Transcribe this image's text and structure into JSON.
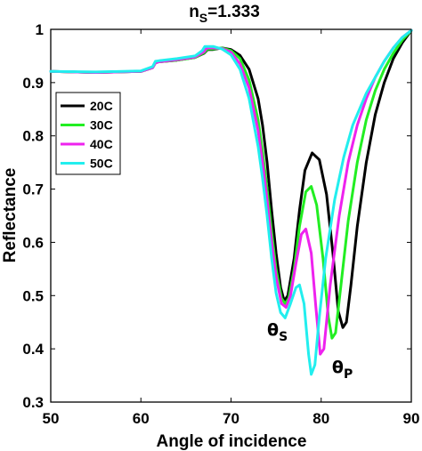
{
  "chart_data": {
    "type": "line",
    "title": "n",
    "title_subscript": "S",
    "title_suffix": "=1.333",
    "xlabel": "Angle of incidence",
    "ylabel": "Reflectance",
    "xlim": [
      50,
      90
    ],
    "ylim": [
      0.3,
      1.0
    ],
    "xticks": [
      50,
      60,
      70,
      80,
      90
    ],
    "yticks": [
      0.3,
      0.4,
      0.5,
      0.6,
      0.7,
      0.8,
      0.9,
      1.0
    ],
    "xtick_labels": [
      "50",
      "60",
      "70",
      "80",
      "90"
    ],
    "ytick_labels": [
      "0.3",
      "0.4",
      "0.5",
      "0.6",
      "0.7",
      "0.8",
      "0.9",
      "1"
    ],
    "grid": false,
    "legend_position": "upper-left",
    "annotations": [
      {
        "text": "θ",
        "sub": "S",
        "x": 74.0,
        "y": 0.425
      },
      {
        "text": "θ",
        "sub": "P",
        "x": 81.2,
        "y": 0.355
      }
    ],
    "series": [
      {
        "name": "20C",
        "color": "#000000",
        "points": [
          [
            50,
            0.921
          ],
          [
            55,
            0.919
          ],
          [
            60,
            0.921
          ],
          [
            61.3,
            0.928
          ],
          [
            61.6,
            0.937
          ],
          [
            62,
            0.939
          ],
          [
            64,
            0.942
          ],
          [
            66,
            0.947
          ],
          [
            67,
            0.955
          ],
          [
            67.4,
            0.962
          ],
          [
            68,
            0.962
          ],
          [
            69,
            0.965
          ],
          [
            70,
            0.962
          ],
          [
            71,
            0.951
          ],
          [
            72,
            0.925
          ],
          [
            73,
            0.87
          ],
          [
            73.5,
            0.82
          ],
          [
            74,
            0.75
          ],
          [
            74.5,
            0.66
          ],
          [
            75,
            0.58
          ],
          [
            75.5,
            0.515
          ],
          [
            75.9,
            0.49
          ],
          [
            76.3,
            0.5
          ],
          [
            77,
            0.57
          ],
          [
            77.6,
            0.66
          ],
          [
            78.2,
            0.735
          ],
          [
            79,
            0.768
          ],
          [
            79.8,
            0.755
          ],
          [
            80.6,
            0.69
          ],
          [
            81.3,
            0.58
          ],
          [
            81.9,
            0.47
          ],
          [
            82.4,
            0.44
          ],
          [
            82.8,
            0.45
          ],
          [
            83.3,
            0.52
          ],
          [
            84,
            0.63
          ],
          [
            85,
            0.75
          ],
          [
            86,
            0.84
          ],
          [
            87,
            0.9
          ],
          [
            88,
            0.945
          ],
          [
            89,
            0.975
          ],
          [
            90,
            0.998
          ]
        ]
      },
      {
        "name": "30C",
        "color": "#22ee22",
        "points": [
          [
            50,
            0.921
          ],
          [
            55,
            0.919
          ],
          [
            60,
            0.921
          ],
          [
            61.3,
            0.928
          ],
          [
            61.6,
            0.937
          ],
          [
            62,
            0.939
          ],
          [
            64,
            0.942
          ],
          [
            66,
            0.947
          ],
          [
            67,
            0.956
          ],
          [
            67.4,
            0.963
          ],
          [
            68,
            0.963
          ],
          [
            69,
            0.965
          ],
          [
            70,
            0.96
          ],
          [
            71,
            0.945
          ],
          [
            72,
            0.905
          ],
          [
            73,
            0.83
          ],
          [
            73.5,
            0.77
          ],
          [
            74,
            0.7
          ],
          [
            74.5,
            0.62
          ],
          [
            75,
            0.55
          ],
          [
            75.6,
            0.495
          ],
          [
            76,
            0.485
          ],
          [
            76.4,
            0.495
          ],
          [
            77,
            0.55
          ],
          [
            77.6,
            0.63
          ],
          [
            78.3,
            0.695
          ],
          [
            78.9,
            0.705
          ],
          [
            79.5,
            0.67
          ],
          [
            80.2,
            0.57
          ],
          [
            80.8,
            0.46
          ],
          [
            81.2,
            0.42
          ],
          [
            81.6,
            0.43
          ],
          [
            82.2,
            0.52
          ],
          [
            83,
            0.64
          ],
          [
            84,
            0.75
          ],
          [
            85,
            0.83
          ],
          [
            86,
            0.885
          ],
          [
            87,
            0.925
          ],
          [
            88,
            0.955
          ],
          [
            89,
            0.98
          ],
          [
            90,
            0.998
          ]
        ]
      },
      {
        "name": "40C",
        "color": "#ee22ee",
        "points": [
          [
            50,
            0.921
          ],
          [
            55,
            0.919
          ],
          [
            60,
            0.921
          ],
          [
            61.3,
            0.928
          ],
          [
            61.6,
            0.937
          ],
          [
            62,
            0.939
          ],
          [
            64,
            0.943
          ],
          [
            66,
            0.948
          ],
          [
            67,
            0.958
          ],
          [
            67.3,
            0.965
          ],
          [
            68,
            0.965
          ],
          [
            69,
            0.964
          ],
          [
            70,
            0.957
          ],
          [
            71,
            0.935
          ],
          [
            72,
            0.89
          ],
          [
            73,
            0.81
          ],
          [
            73.5,
            0.75
          ],
          [
            74,
            0.68
          ],
          [
            74.5,
            0.6
          ],
          [
            75,
            0.535
          ],
          [
            75.6,
            0.485
          ],
          [
            76.1,
            0.478
          ],
          [
            76.6,
            0.5
          ],
          [
            77.2,
            0.56
          ],
          [
            77.8,
            0.615
          ],
          [
            78.3,
            0.625
          ],
          [
            78.9,
            0.58
          ],
          [
            79.4,
            0.48
          ],
          [
            79.9,
            0.39
          ],
          [
            80.3,
            0.4
          ],
          [
            81,
            0.52
          ],
          [
            82,
            0.65
          ],
          [
            83,
            0.75
          ],
          [
            84,
            0.82
          ],
          [
            85,
            0.87
          ],
          [
            86,
            0.91
          ],
          [
            87,
            0.94
          ],
          [
            88,
            0.965
          ],
          [
            89,
            0.985
          ],
          [
            90,
            0.998
          ]
        ]
      },
      {
        "name": "50C",
        "color": "#22eeee",
        "points": [
          [
            50,
            0.921
          ],
          [
            55,
            0.92
          ],
          [
            60,
            0.922
          ],
          [
            61.3,
            0.93
          ],
          [
            61.6,
            0.94
          ],
          [
            62,
            0.941
          ],
          [
            64,
            0.945
          ],
          [
            66,
            0.95
          ],
          [
            66.8,
            0.96
          ],
          [
            67.1,
            0.968
          ],
          [
            68,
            0.968
          ],
          [
            69,
            0.963
          ],
          [
            70,
            0.952
          ],
          [
            71,
            0.925
          ],
          [
            72,
            0.87
          ],
          [
            73,
            0.78
          ],
          [
            73.5,
            0.72
          ],
          [
            74,
            0.65
          ],
          [
            74.5,
            0.57
          ],
          [
            75,
            0.505
          ],
          [
            75.5,
            0.468
          ],
          [
            76,
            0.458
          ],
          [
            76.6,
            0.485
          ],
          [
            77.2,
            0.515
          ],
          [
            77.6,
            0.52
          ],
          [
            78.1,
            0.485
          ],
          [
            78.6,
            0.39
          ],
          [
            78.9,
            0.352
          ],
          [
            79.3,
            0.37
          ],
          [
            79.8,
            0.46
          ],
          [
            80.5,
            0.57
          ],
          [
            81.5,
            0.68
          ],
          [
            82.5,
            0.76
          ],
          [
            83.5,
            0.82
          ],
          [
            85,
            0.88
          ],
          [
            86,
            0.91
          ],
          [
            87,
            0.94
          ],
          [
            88,
            0.965
          ],
          [
            89,
            0.985
          ],
          [
            90,
            0.998
          ]
        ]
      }
    ]
  }
}
